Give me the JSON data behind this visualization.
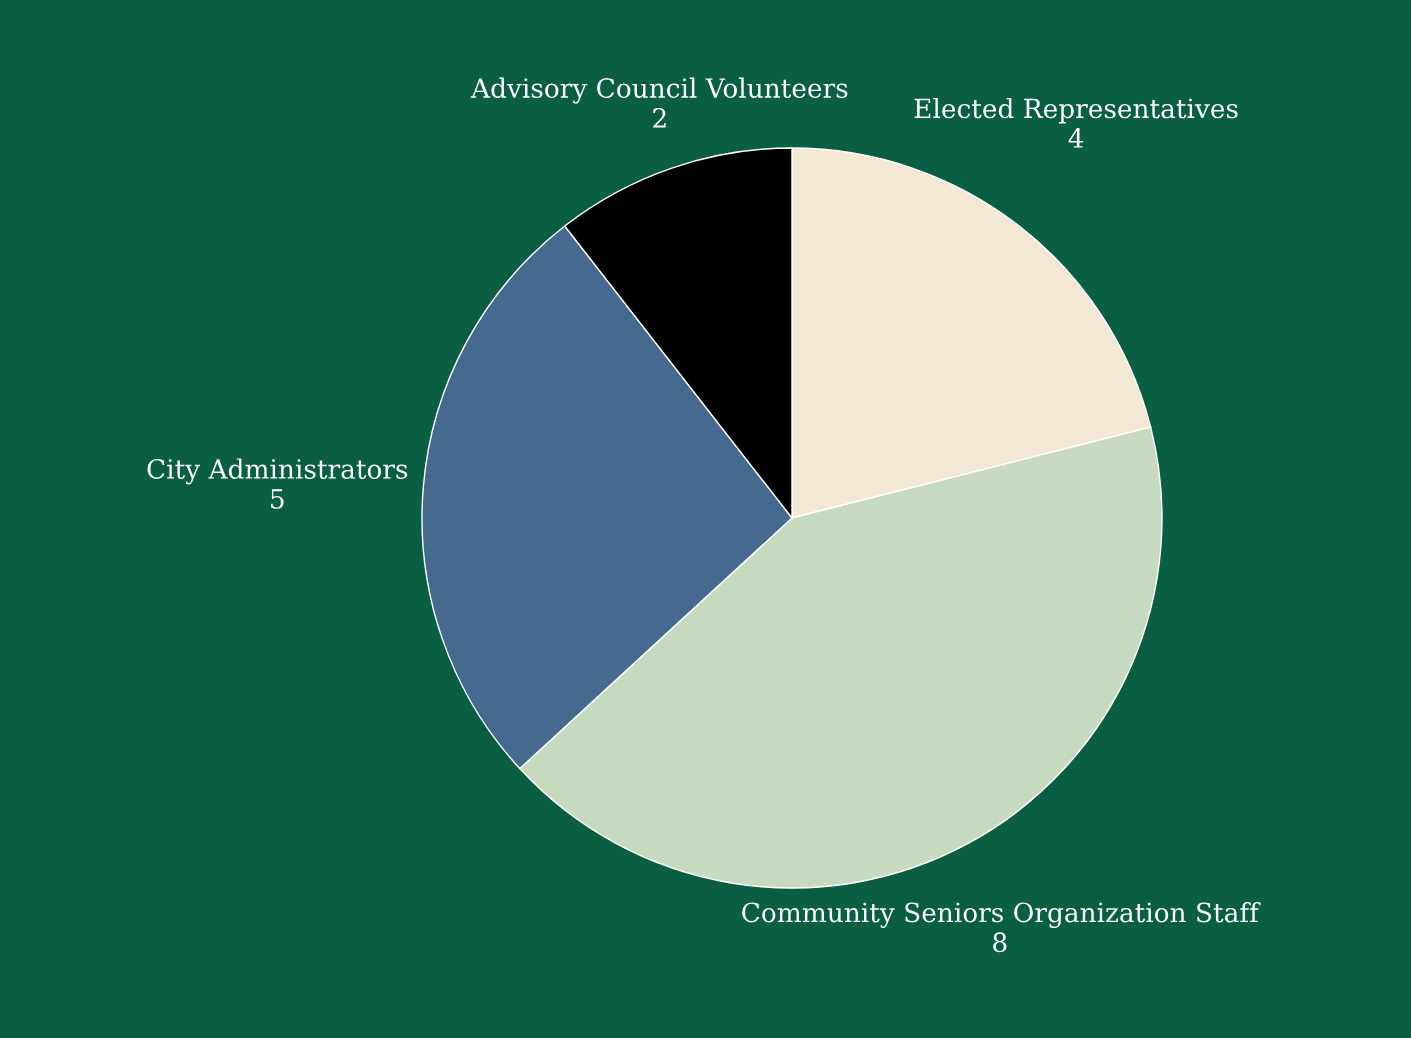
{
  "chart_data": {
    "type": "pie",
    "categories": [
      "Elected Representatives",
      "Community Seniors Organization Staff",
      "City Administrators",
      "Advisory Council Volunteers"
    ],
    "values": [
      4,
      8,
      5,
      2
    ],
    "colors": [
      "#f3e8d4",
      "#c6dabf",
      "#46698f",
      "#000000"
    ],
    "data_labels": true
  }
}
